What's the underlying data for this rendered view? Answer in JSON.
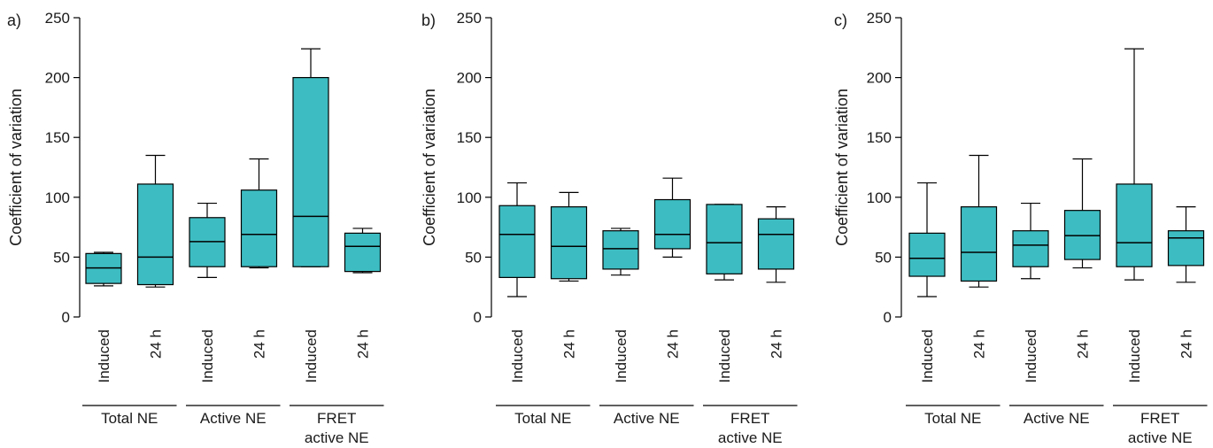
{
  "colors": {
    "box_fill": "#3dbdc2",
    "stroke": "#000000"
  },
  "chart_data": [
    {
      "type": "box",
      "panel_label": "a)",
      "ylabel": "Coefficient of variation",
      "ylim": [
        0,
        250
      ],
      "yticks": [
        0,
        50,
        100,
        150,
        200,
        250
      ],
      "categories": [
        "Induced",
        "24 h",
        "Induced",
        "24 h",
        "Induced",
        "24 h"
      ],
      "groups": [
        {
          "label_lines": [
            "Total NE"
          ],
          "span": [
            0,
            1
          ]
        },
        {
          "label_lines": [
            "Active NE"
          ],
          "span": [
            2,
            3
          ]
        },
        {
          "label_lines": [
            "FRET",
            "active NE"
          ],
          "span": [
            4,
            5
          ]
        }
      ],
      "boxes": [
        {
          "min": 26,
          "q1": 28,
          "median": 41,
          "q3": 53,
          "max": 54
        },
        {
          "min": 25,
          "q1": 27,
          "median": 50,
          "q3": 111,
          "max": 135
        },
        {
          "min": 33,
          "q1": 42,
          "median": 63,
          "q3": 83,
          "max": 95
        },
        {
          "min": 41,
          "q1": 42,
          "median": 69,
          "q3": 106,
          "max": 132
        },
        {
          "min": 42,
          "q1": 42,
          "median": 84,
          "q3": 200,
          "max": 224
        },
        {
          "min": 37,
          "q1": 38,
          "median": 59,
          "q3": 70,
          "max": 74
        }
      ]
    },
    {
      "type": "box",
      "panel_label": "b)",
      "ylabel": "Coefficient of variation",
      "ylim": [
        0,
        250
      ],
      "yticks": [
        0,
        50,
        100,
        150,
        200,
        250
      ],
      "categories": [
        "Induced",
        "24 h",
        "Induced",
        "24 h",
        "Induced",
        "24 h"
      ],
      "groups": [
        {
          "label_lines": [
            "Total NE"
          ],
          "span": [
            0,
            1
          ]
        },
        {
          "label_lines": [
            "Active NE"
          ],
          "span": [
            2,
            3
          ]
        },
        {
          "label_lines": [
            "FRET",
            "active NE"
          ],
          "span": [
            4,
            5
          ]
        }
      ],
      "boxes": [
        {
          "min": 17,
          "q1": 33,
          "median": 69,
          "q3": 93,
          "max": 112
        },
        {
          "min": 30,
          "q1": 32,
          "median": 59,
          "q3": 92,
          "max": 104
        },
        {
          "min": 35,
          "q1": 40,
          "median": 57,
          "q3": 72,
          "max": 74
        },
        {
          "min": 50,
          "q1": 57,
          "median": 69,
          "q3": 98,
          "max": 116
        },
        {
          "min": 31,
          "q1": 36,
          "median": 62,
          "q3": 94,
          "max": 94
        },
        {
          "min": 29,
          "q1": 40,
          "median": 69,
          "q3": 82,
          "max": 92
        }
      ]
    },
    {
      "type": "box",
      "panel_label": "c)",
      "ylabel": "Coefficient of variation",
      "ylim": [
        0,
        250
      ],
      "yticks": [
        0,
        50,
        100,
        150,
        200,
        250
      ],
      "categories": [
        "Induced",
        "24 h",
        "Induced",
        "24 h",
        "Induced",
        "24 h"
      ],
      "groups": [
        {
          "label_lines": [
            "Total NE"
          ],
          "span": [
            0,
            1
          ]
        },
        {
          "label_lines": [
            "Active NE"
          ],
          "span": [
            2,
            3
          ]
        },
        {
          "label_lines": [
            "FRET",
            "active NE"
          ],
          "span": [
            4,
            5
          ]
        }
      ],
      "boxes": [
        {
          "min": 17,
          "q1": 34,
          "median": 49,
          "q3": 70,
          "max": 112
        },
        {
          "min": 25,
          "q1": 30,
          "median": 54,
          "q3": 92,
          "max": 135
        },
        {
          "min": 32,
          "q1": 42,
          "median": 60,
          "q3": 72,
          "max": 95
        },
        {
          "min": 41,
          "q1": 48,
          "median": 68,
          "q3": 89,
          "max": 132
        },
        {
          "min": 31,
          "q1": 42,
          "median": 62,
          "q3": 111,
          "max": 224
        },
        {
          "min": 29,
          "q1": 43,
          "median": 66,
          "q3": 72,
          "max": 92
        }
      ]
    }
  ]
}
